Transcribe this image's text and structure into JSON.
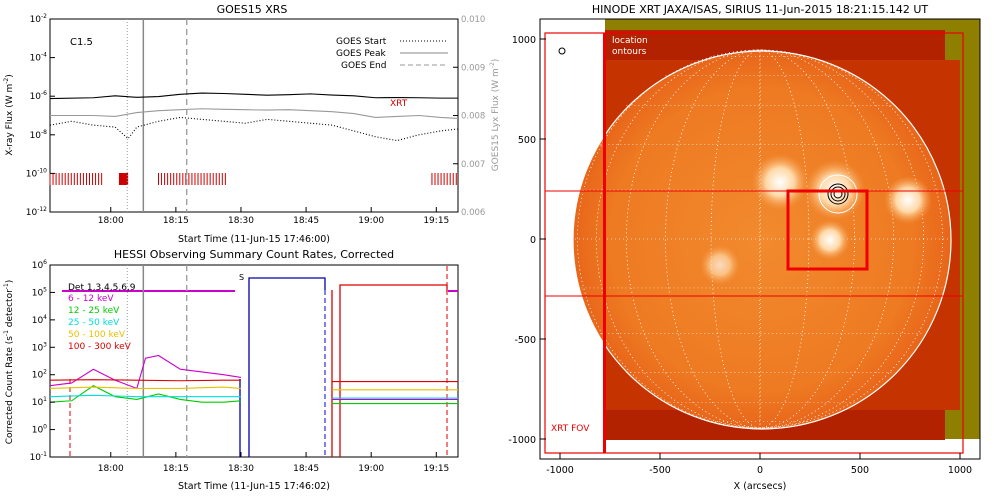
{
  "chart_data": [
    {
      "type": "line",
      "title": "GOES15 XRS",
      "xlabel": "Start Time (11-Jun-15 17:46:00)",
      "ylabel": "X-ray Flux (W m",
      "ylabel_sup": "-2",
      "ylabel_end": ")",
      "y2label": "GOES15 Lyx Flux (W m",
      "y2label_sup": "-2",
      "y2label_end": ")",
      "flare_class": "C1.5",
      "xrt_label": "XRT",
      "x_ticks": [
        "18:00",
        "18:15",
        "18:30",
        "18:45",
        "19:00",
        "19:15"
      ],
      "y_tick_exponents": [
        "-2",
        "-4",
        "-6",
        "-8",
        "-10",
        "-12"
      ],
      "y2_ticks": [
        "0.010",
        "0.009",
        "0.008",
        "0.007",
        "0.006"
      ],
      "legend": [
        {
          "name": "GOES Start",
          "style": "dotted"
        },
        {
          "name": "GOES Peak",
          "style": "solid"
        },
        {
          "name": "GOES End",
          "style": "dashed"
        }
      ],
      "markers_min": {
        "start": 17.8,
        "peak": 21.5,
        "end": 31.5
      },
      "colors": {
        "xrt": "#cc0000",
        "peak": "#888888",
        "lyx": "#999999"
      },
      "series": [
        {
          "color": "#000000",
          "style": "solid",
          "x": [
            0,
            10,
            15,
            20,
            25,
            30,
            35,
            40,
            45,
            50,
            55,
            60,
            65,
            70,
            75,
            80,
            85,
            90,
            94
          ],
          "y": [
            -6.12,
            -6.08,
            -5.98,
            -6.06,
            -6.02,
            -5.9,
            -5.84,
            -5.86,
            -5.9,
            -5.95,
            -5.92,
            -5.88,
            -5.94,
            -5.98,
            -6.08,
            -6.07,
            -6.08,
            -6.1,
            -6.1
          ]
        },
        {
          "color": "#999999",
          "style": "solid",
          "x": [
            0,
            10,
            15,
            20,
            25,
            30,
            35,
            40,
            45,
            50,
            55,
            60,
            65,
            70,
            75,
            80,
            85,
            90,
            94
          ],
          "y": [
            -7.0,
            -7.0,
            -7.05,
            -6.85,
            -6.75,
            -6.7,
            -6.65,
            -6.68,
            -6.7,
            -6.72,
            -6.7,
            -6.75,
            -6.8,
            -6.9,
            -7.1,
            -7.05,
            -7.0,
            -7.1,
            -7.15
          ]
        },
        {
          "color": "#000000",
          "style": "dotted",
          "x": [
            0,
            5,
            10,
            15,
            18,
            20,
            25,
            30,
            35,
            40,
            45,
            50,
            55,
            60,
            65,
            70,
            75,
            80,
            85,
            90,
            94
          ],
          "y": [
            -7.5,
            -7.3,
            -7.5,
            -7.6,
            -8.2,
            -7.6,
            -7.3,
            -7.1,
            -7.2,
            -7.3,
            -7.4,
            -7.2,
            -7.3,
            -7.4,
            -7.5,
            -7.8,
            -8.1,
            -8.3,
            -8.0,
            -7.8,
            -7.7
          ]
        }
      ],
      "xrt_bars_min": [
        [
          0,
          12
        ],
        [
          16,
          18
        ],
        [
          25,
          41
        ],
        [
          88,
          94
        ]
      ],
      "xlim_min": [
        0,
        94
      ],
      "ylim_exp": [
        -12,
        -2
      ]
    },
    {
      "type": "line",
      "title": "HESSI Observing Summary Count Rates, Corrected",
      "xlabel": "Start Time (11-Jun-15 17:46:02)",
      "ylabel": "Corrected Count Rate (s",
      "ylabel_sup": "-1",
      "ylabel_mid": " detector",
      "ylabel_sup2": "-1",
      "ylabel_end": ")",
      "x_ticks": [
        "18:00",
        "18:15",
        "18:30",
        "18:45",
        "19:00",
        "19:15"
      ],
      "y_tick_exponents": [
        "6",
        "5",
        "4",
        "3",
        "2",
        "1",
        "0",
        "-1"
      ],
      "detectors": "Det 1,3,4,5,6,9",
      "saa_label": "S",
      "legend": [
        {
          "name": "6 - 12 keV",
          "color": "#cc00cc"
        },
        {
          "name": "12 - 25 keV",
          "color": "#00cc00"
        },
        {
          "name": "25 - 50 keV",
          "color": "#00dddd"
        },
        {
          "name": "50 - 100 keV",
          "color": "#e8c000"
        },
        {
          "name": "100 - 300 keV",
          "color": "#dd0000"
        }
      ],
      "series": [
        {
          "name": "6 - 12 keV",
          "color": "#cc00cc",
          "x": [
            0,
            5,
            10,
            15,
            20,
            22,
            25,
            30,
            35,
            40,
            44
          ],
          "y": [
            1.6,
            1.7,
            2.2,
            1.8,
            1.5,
            2.6,
            2.7,
            2.2,
            2.1,
            2.0,
            1.9
          ]
        },
        {
          "name": "12 - 25 keV",
          "color": "#00cc00",
          "x": [
            0,
            5,
            10,
            15,
            20,
            25,
            30,
            35,
            40,
            44
          ],
          "y": [
            1.0,
            1.05,
            1.6,
            1.2,
            1.1,
            1.3,
            1.1,
            1.0,
            1.0,
            1.05
          ]
        },
        {
          "name": "25 - 50 keV",
          "color": "#00dddd",
          "x": [
            0,
            10,
            20,
            30,
            40,
            44
          ],
          "y": [
            1.2,
            1.25,
            1.2,
            1.2,
            1.2,
            1.2
          ]
        },
        {
          "name": "50 - 100 keV",
          "color": "#e8c000",
          "x": [
            0,
            10,
            20,
            30,
            40,
            44
          ],
          "y": [
            1.5,
            1.55,
            1.5,
            1.5,
            1.55,
            1.5
          ]
        },
        {
          "name": "100 - 300 keV",
          "color": "#dd0000",
          "x": [
            0,
            10,
            20,
            30,
            40,
            44
          ],
          "y": [
            1.8,
            1.82,
            1.8,
            1.78,
            1.8,
            1.8
          ]
        }
      ],
      "right_series": [
        {
          "color": "#cc00cc",
          "x": [
            65,
            94
          ],
          "y": [
            1.1,
            1.1
          ]
        },
        {
          "color": "#00cc00",
          "x": [
            65,
            94
          ],
          "y": [
            0.95,
            0.95
          ]
        },
        {
          "color": "#00dddd",
          "x": [
            65,
            94
          ],
          "y": [
            1.15,
            1.15
          ]
        },
        {
          "color": "#e8c000",
          "x": [
            65,
            94
          ],
          "y": [
            1.45,
            1.45
          ]
        },
        {
          "color": "#dd0000",
          "x": [
            65,
            94
          ],
          "y": [
            1.75,
            1.75
          ]
        }
      ],
      "xlim_min": [
        0,
        94
      ],
      "ylim_exp": [
        -1,
        6
      ]
    },
    {
      "type": "heatmap",
      "title": "HINODE XRT JAXA/ISAS, SIRIUS 11-Jun-2015 18:21:15.142 UT",
      "xlabel": "X (arcsecs)",
      "x_ticks": [
        "-1000",
        "-500",
        "0",
        "500",
        "1000"
      ],
      "y_ticks": [
        "1000",
        "500",
        "0",
        "-500",
        "-1000"
      ],
      "xlim": [
        -1100,
        1100
      ],
      "ylim": [
        -1100,
        1100
      ],
      "disk_radius_arcsec": 945,
      "annotations": {
        "location": "location",
        "contours": "ontours",
        "fov": "XRT FOV"
      },
      "colors": {
        "disk": "#f07a20",
        "background": "#8f7f00",
        "fov": "#ee0000",
        "limb": "#ffffff"
      }
    }
  ]
}
